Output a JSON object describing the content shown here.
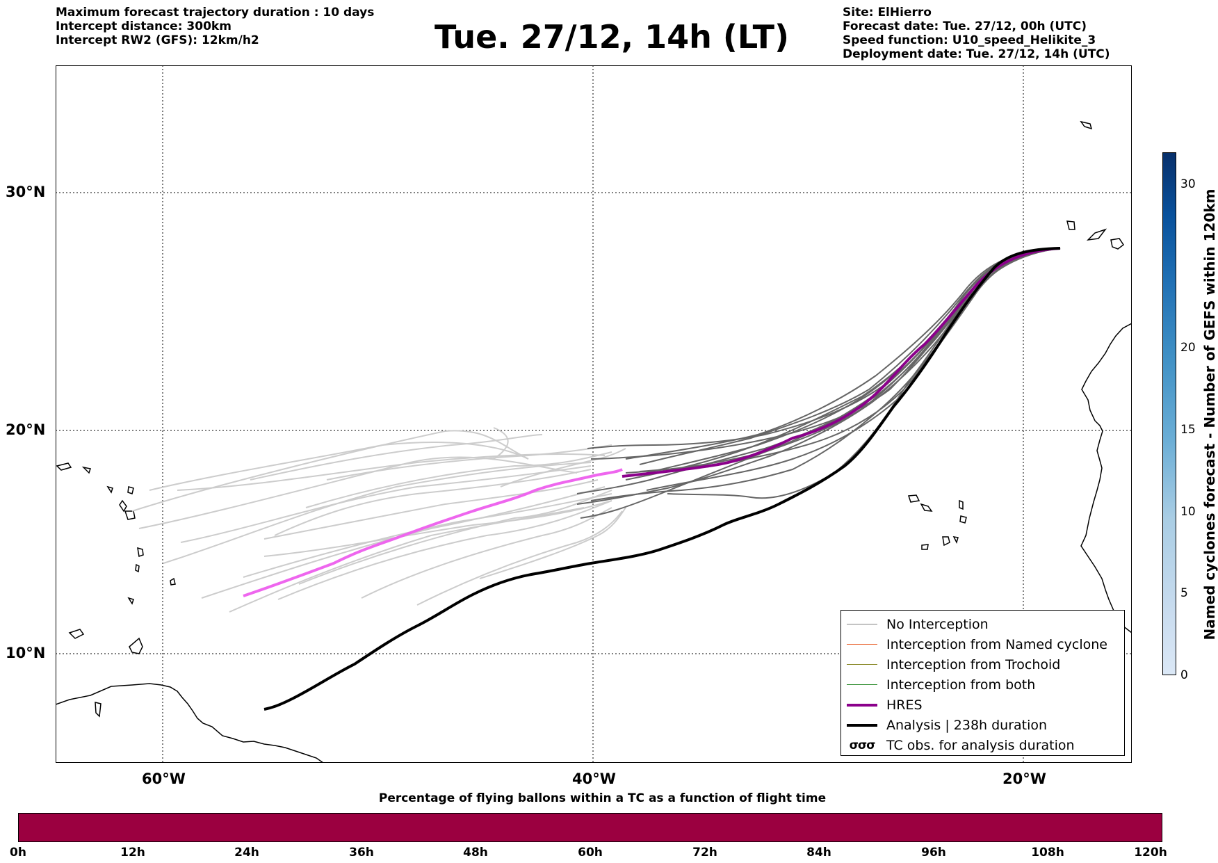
{
  "header": {
    "left_lines": [
      "Maximum forecast trajectory duration : 10 days",
      "Intercept distance: 300km",
      "Intercept RW2 (GFS):  12km/h2"
    ],
    "title": "Tue. 27/12, 14h (LT)",
    "right_lines": [
      "Site: ElHierro",
      "Forecast date: Tue. 27/12, 00h (UTC)",
      "Speed function: U10_speed_Helikite_3",
      "Deployment date: Tue. 27/12, 14h (UTC)"
    ]
  },
  "map": {
    "lat_labels": [
      "30°N",
      "20°N",
      "10°N"
    ],
    "lon_labels": [
      "60°W",
      "40°W",
      "20°W"
    ],
    "lat_values": [
      30,
      20,
      10
    ],
    "lon_values": [
      -60,
      -40,
      -20
    ],
    "grid": "dotted"
  },
  "legend": {
    "items": [
      {
        "label": "No Interception",
        "color": "#808080",
        "style": "thin"
      },
      {
        "label": "Interception from Named cyclone",
        "color": "#e8602a",
        "style": "thin"
      },
      {
        "label": "Interception from Trochoid",
        "color": "#8a8a2a",
        "style": "thin"
      },
      {
        "label": "Interception from both",
        "color": "#2a8a2a",
        "style": "thin"
      },
      {
        "label": "HRES",
        "color": "#8b008b",
        "style": "thick"
      },
      {
        "label": "Analysis | 238h duration",
        "color": "#000000",
        "style": "thick"
      },
      {
        "label": "TC obs. for analysis duration",
        "color": "#000000",
        "style": "symbol",
        "symbol": "σσσ"
      }
    ]
  },
  "bottom_colorbar": {
    "caption": "Percentage of flying ballons within a TC as a function of flight time",
    "color": "#9b0040",
    "ticks": [
      "0h",
      "12h",
      "24h",
      "36h",
      "48h",
      "60h",
      "72h",
      "84h",
      "96h",
      "108h",
      "120h"
    ]
  },
  "side_colorbar": {
    "label": "Named cyclones forecast - Number of GEFS within 120km",
    "ticks": [
      "0",
      "5",
      "10",
      "15",
      "20",
      "30"
    ],
    "tick_values": [
      0,
      5,
      10,
      15,
      20,
      30
    ]
  },
  "colors": {
    "no_interception": "#666666",
    "ensemble_faded": "#cccccc",
    "hres": "#8b008b",
    "hres_faded": "#ee66ee",
    "analysis": "#000000"
  }
}
